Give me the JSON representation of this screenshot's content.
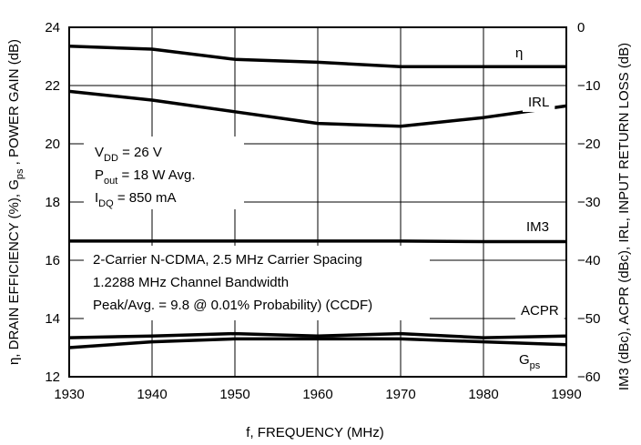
{
  "chart_data": {
    "type": "line",
    "x_axis": {
      "label": "f, FREQUENCY (MHz)",
      "range": [
        1930,
        1990
      ],
      "ticks": [
        1930,
        1940,
        1950,
        1960,
        1970,
        1980,
        1990
      ]
    },
    "y_left": {
      "label": "η, DRAIN EFFICIENCY (%),  G",
      "label_sub": "ps",
      "label_rest": " , POWER GAIN (dB)",
      "range": [
        12,
        24
      ],
      "ticks": [
        12,
        14,
        16,
        18,
        20,
        22,
        24
      ]
    },
    "y_right": {
      "label": "IM3 (dBc), ACPR (dBc),  IRL,  INPUT RETURN LOSS (dB)",
      "range": [
        -60,
        0
      ],
      "ticks": [
        -60,
        -50,
        -40,
        -30,
        -20,
        -10,
        0
      ]
    },
    "grid": true,
    "series": [
      {
        "name": "η",
        "name_sub": "",
        "axis": "left",
        "x": [
          1930,
          1940,
          1950,
          1960,
          1970,
          1980,
          1990
        ],
        "y": [
          23.35,
          23.25,
          22.9,
          22.8,
          22.65,
          22.65,
          22.65
        ]
      },
      {
        "name": "IRL",
        "name_sub": "",
        "axis": "right",
        "x": [
          1930,
          1940,
          1950,
          1960,
          1970,
          1980,
          1990
        ],
        "y": [
          -11.0,
          -12.5,
          -14.5,
          -16.5,
          -17.0,
          -15.5,
          -13.5
        ]
      },
      {
        "name": "IM3",
        "name_sub": "",
        "axis": "right",
        "x": [
          1930,
          1940,
          1950,
          1960,
          1970,
          1980,
          1990
        ],
        "y": [
          -36.7,
          -36.7,
          -36.7,
          -36.7,
          -36.7,
          -36.8,
          -36.8
        ]
      },
      {
        "name": "ACPR",
        "name_sub": "",
        "axis": "right",
        "x": [
          1930,
          1940,
          1950,
          1960,
          1970,
          1980,
          1990
        ],
        "y": [
          -53.3,
          -53.0,
          -52.6,
          -53.0,
          -52.6,
          -53.3,
          -53.0
        ]
      },
      {
        "name": "G",
        "name_sub": "ps",
        "axis": "left",
        "x": [
          1930,
          1940,
          1950,
          1960,
          1970,
          1980,
          1990
        ],
        "y": [
          13.0,
          13.2,
          13.3,
          13.3,
          13.3,
          13.2,
          13.1
        ]
      }
    ],
    "annotations": {
      "conditions": [
        {
          "main": "V",
          "sub": "DD",
          "rest": " = 26 V"
        },
        {
          "main": "P",
          "sub": "out",
          "rest": " = 18 W Avg."
        },
        {
          "main": "I",
          "sub": "DQ",
          "rest": " = 850 mA"
        }
      ],
      "signal": [
        "2-Carrier N-CDMA, 2.5 MHz Carrier Spacing",
        "1.2288 MHz Channel Bandwidth",
        "Peak/Avg. = 9.8 @ 0.01% Probability) (CCDF)"
      ]
    }
  }
}
